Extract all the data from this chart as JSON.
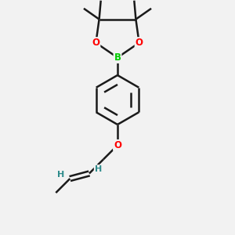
{
  "bg_color": "#f2f2f2",
  "bond_color": "#1a1a1a",
  "bond_width": 1.8,
  "O_color": "#ff0000",
  "B_color": "#00cc00",
  "H_color": "#2e8b8b",
  "font_size_atom": 8.5,
  "fig_width": 3.0,
  "fig_height": 3.0,
  "dpi": 100,
  "xlim": [
    0,
    10
  ],
  "ylim": [
    0,
    10
  ]
}
